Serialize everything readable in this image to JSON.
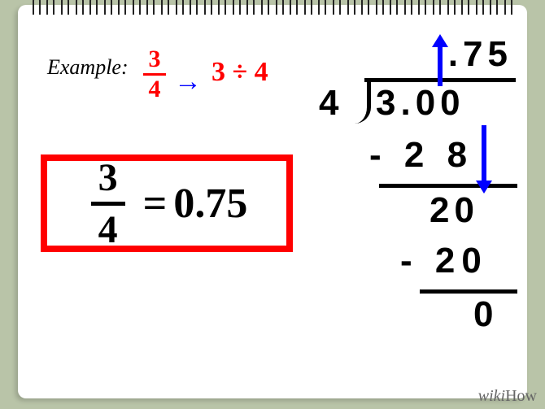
{
  "colors": {
    "background": "#b9c4a8",
    "red": "#ff0000",
    "blue": "#0000ff",
    "black": "#000000",
    "box_border": "#ff0000"
  },
  "typography": {
    "label_font": "Georgia, serif",
    "math_font": "Helvetica, Arial, sans-serif",
    "example_fontsize": 26,
    "frac_small_fontsize": 30,
    "div_expr_fontsize": 34,
    "frac_big_fontsize": 48,
    "decimal_fontsize": 52,
    "longdiv_fontsize": 44
  },
  "example": {
    "label": "Example:",
    "fraction": {
      "numerator": "3",
      "denominator": "4"
    },
    "arrow": "→",
    "division_expression": "3 ÷ 4"
  },
  "result": {
    "fraction": {
      "numerator": "3",
      "denominator": "4"
    },
    "equals": "=",
    "decimal": "0.75",
    "box_border_width": 8
  },
  "long_division": {
    "quotient": ".75",
    "divisor": "4",
    "dividend": "3.00",
    "steps": [
      {
        "subtract": "- 2 8",
        "line_width": 170
      },
      {
        "remainder": "20"
      },
      {
        "subtract": "- 20",
        "line_width": 120
      },
      {
        "remainder": "0"
      }
    ],
    "arrows": [
      {
        "direction": "up",
        "color": "#0000ff"
      },
      {
        "direction": "down",
        "color": "#0000ff"
      }
    ]
  },
  "watermark": {
    "prefix": "wiki",
    "suffix": "How"
  },
  "spiral_rings": 34
}
